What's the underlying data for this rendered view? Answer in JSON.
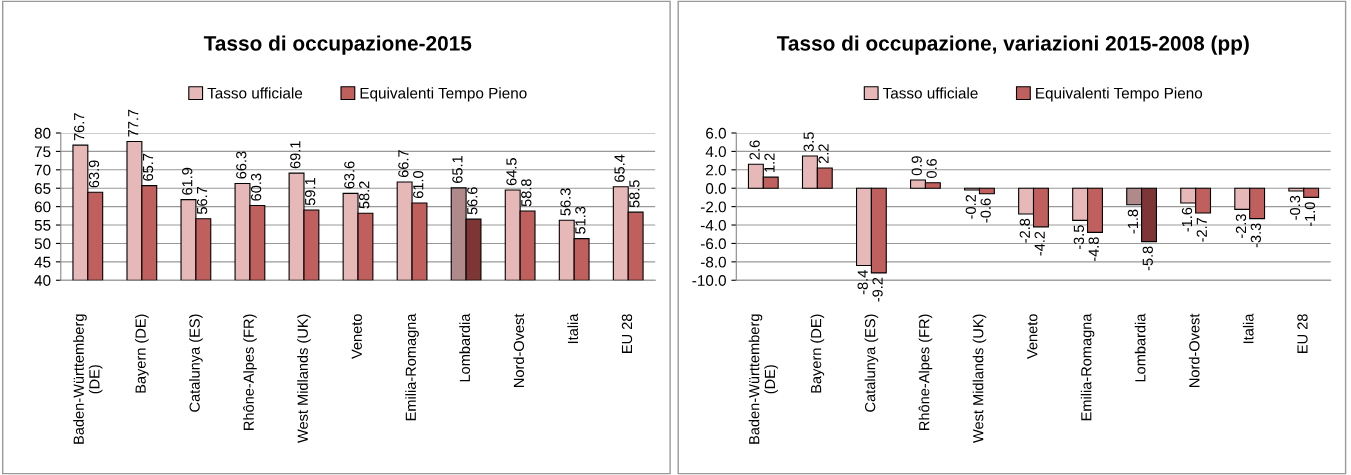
{
  "chart_data": [
    {
      "type": "bar",
      "title": "Tasso di occupazione-2015",
      "categories": [
        "Baden-Württemberg (DE)",
        "Bayern (DE)",
        "Catalunya (ES)",
        "Rhône-Alpes (FR)",
        "West Midlands (UK)",
        "Veneto",
        "Emilia-Romagna",
        "Lombardia",
        "Nord-Ovest",
        "Italia",
        "EU 28"
      ],
      "series": [
        {
          "name": "Tasso ufficiale",
          "color": "#e6b9b8",
          "colors": [
            "#e6b9b8",
            "#e6b9b8",
            "#e6b9b8",
            "#e6b9b8",
            "#e6b9b8",
            "#e6b9b8",
            "#e6b9b8",
            "#b08a8a",
            "#e6b9b8",
            "#e6b9b8",
            "#e6b9b8"
          ],
          "values": [
            76.7,
            77.7,
            61.9,
            66.3,
            69.1,
            63.6,
            66.7,
            65.1,
            64.5,
            56.3,
            65.4
          ],
          "value_labels": [
            "76.7",
            "77.7",
            "61.9",
            "66.3",
            "69.1",
            "63.6",
            "66.7",
            "65.1",
            "64.5",
            "56.3",
            "65.4"
          ]
        },
        {
          "name": "Equivalenti Tempo Pieno",
          "color": "#c0605e",
          "colors": [
            "#c0605e",
            "#c0605e",
            "#c0605e",
            "#c0605e",
            "#c0605e",
            "#c0605e",
            "#c0605e",
            "#7e3535",
            "#c0605e",
            "#c0605e",
            "#c0605e"
          ],
          "values": [
            63.9,
            65.7,
            56.7,
            60.3,
            59.1,
            58.2,
            61.0,
            56.6,
            58.8,
            51.3,
            58.5
          ],
          "value_labels": [
            "63.9",
            "65.7",
            "56.7",
            "60.3",
            "59.1",
            "58.2",
            "61.0",
            "56.6",
            "58.8",
            "51.3",
            "58.5"
          ]
        }
      ],
      "ylim": [
        40,
        80
      ],
      "yticks": [
        40,
        45,
        50,
        55,
        60,
        65,
        70,
        75,
        80
      ],
      "grid": "y",
      "legend": "top"
    },
    {
      "type": "bar",
      "title": "Tasso di occupazione, variazioni 2015-2008 (pp)",
      "categories": [
        "Baden-Württemberg (DE)",
        "Bayern (DE)",
        "Catalunya (ES)",
        "Rhône-Alpes (FR)",
        "West Midlands (UK)",
        "Veneto",
        "Emilia-Romagna",
        "Lombardia",
        "Nord-Ovest",
        "Italia",
        "EU 28"
      ],
      "series": [
        {
          "name": "Tasso ufficiale",
          "color": "#e6b9b8",
          "colors": [
            "#e6b9b8",
            "#e6b9b8",
            "#e6b9b8",
            "#e6b9b8",
            "#e6b9b8",
            "#e6b9b8",
            "#e6b9b8",
            "#b08a8a",
            "#e6b9b8",
            "#e6b9b8",
            "#e6b9b8"
          ],
          "values": [
            2.6,
            3.5,
            -8.4,
            0.9,
            -0.2,
            -2.8,
            -3.5,
            -1.8,
            -1.6,
            -2.3,
            -0.3
          ],
          "value_labels": [
            "2.6",
            "3.5",
            "-8.4",
            "0.9",
            "-0.2",
            "-2.8",
            "-3.5",
            "-1.8",
            "-1.6",
            "-2.3",
            "-0.3"
          ]
        },
        {
          "name": "Equivalenti Tempo Pieno",
          "color": "#c0605e",
          "colors": [
            "#c0605e",
            "#c0605e",
            "#c0605e",
            "#c0605e",
            "#c0605e",
            "#c0605e",
            "#c0605e",
            "#7e3535",
            "#c0605e",
            "#c0605e",
            "#c0605e"
          ],
          "values": [
            1.2,
            2.2,
            -9.2,
            0.6,
            -0.6,
            -4.2,
            -4.8,
            -5.8,
            -2.7,
            -3.3,
            -1.0
          ],
          "value_labels": [
            "1.2",
            "2.2",
            "-9.2",
            "0.6",
            "-0.6",
            "-4.2",
            "-4.8",
            "-5.8",
            "-2.7",
            "-3.3",
            "-1.0"
          ]
        }
      ],
      "ylim": [
        -10,
        6
      ],
      "yticks": [
        {
          "value": -10,
          "label": "-10.0"
        },
        {
          "value": -8,
          "label": "-8.0"
        },
        {
          "value": -6,
          "label": "-6.0"
        },
        {
          "value": -4,
          "label": "-4.0"
        },
        {
          "value": -2,
          "label": "-2.0"
        },
        {
          "value": 0,
          "label": "0.0"
        },
        {
          "value": 2,
          "label": "2.0"
        },
        {
          "value": 4,
          "label": "4.0"
        },
        {
          "value": 6,
          "label": "6.0"
        }
      ],
      "grid": "y",
      "legend": "top"
    }
  ]
}
